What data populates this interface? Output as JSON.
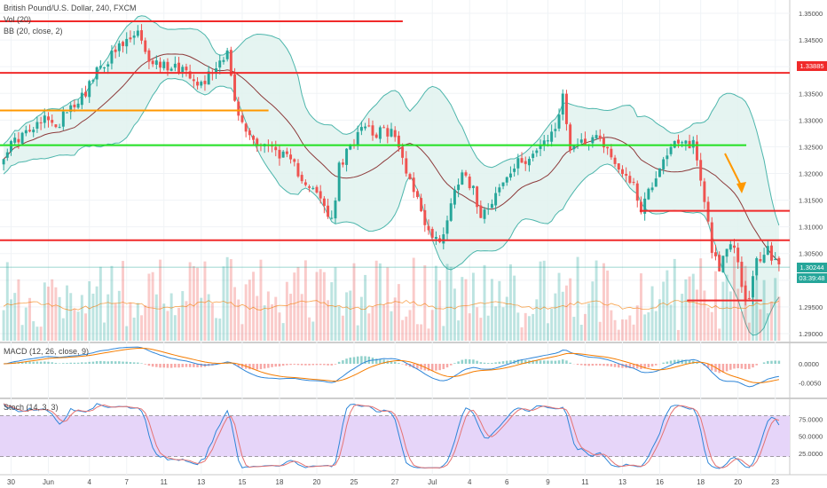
{
  "header": {
    "symbol_title": "British Pound/U.S. Dollar, 240, FXCM",
    "vol_label": "Vol (20)",
    "bb_label": "BB (20, close, 2)",
    "macd_label": "MACD (12, 26, close, 9)",
    "stoch_label": "Stoch (14, 3, 3)"
  },
  "price_tags": {
    "resistance": "1.33885",
    "last_price": "1.30244",
    "countdown": "03:39:48"
  },
  "colors": {
    "bull": "#26a69a",
    "bear": "#ef5350",
    "bb_fill": "#e0f2ef",
    "bb_band": "#4db6ac",
    "bb_basis": "#8d3b3b",
    "red_line": "#f02a2a",
    "orange_line": "#ff9800",
    "green_line": "#21e021",
    "macd_line": "#2f86d8",
    "signal_line": "#f57c00",
    "stoch_k": "#2f86d8",
    "stoch_d": "#e57373",
    "stoch_band": "#e6d5f9"
  },
  "chart_data": [
    {
      "type": "candlestick",
      "panel": "price",
      "y_axis_ticks": [
        "1.35000",
        "1.34500",
        "1.34000",
        "1.33500",
        "1.33000",
        "1.32500",
        "1.32000",
        "1.31500",
        "1.31000",
        "1.30500",
        "1.30000",
        "1.29500",
        "1.29000"
      ],
      "ylim": [
        1.2885,
        1.3515
      ],
      "x_ticks": [
        "30",
        "Jun",
        "4",
        "7",
        "11",
        "13",
        "15",
        "18",
        "20",
        "25",
        "27",
        "Jul",
        "4",
        "6",
        "9",
        "11",
        "13",
        "16",
        "18",
        "20",
        "23"
      ],
      "close_path": [
        [
          0,
          1.3238
        ],
        [
          4,
          1.3268
        ],
        [
          8,
          1.3281
        ],
        [
          12,
          1.3308
        ],
        [
          14,
          1.3278
        ],
        [
          16,
          1.3318
        ],
        [
          19,
          1.3332
        ],
        [
          22,
          1.3355
        ],
        [
          26,
          1.34
        ],
        [
          30,
          1.3428
        ],
        [
          34,
          1.3451
        ],
        [
          36,
          1.3462
        ],
        [
          38,
          1.342
        ],
        [
          42,
          1.3403
        ],
        [
          45,
          1.3402
        ],
        [
          49,
          1.3395
        ],
        [
          53,
          1.3368
        ],
        [
          56,
          1.3392
        ],
        [
          60,
          1.3433
        ],
        [
          62,
          1.333
        ],
        [
          64,
          1.329
        ],
        [
          67,
          1.3262
        ],
        [
          70,
          1.3255
        ],
        [
          74,
          1.3239
        ],
        [
          78,
          1.3212
        ],
        [
          82,
          1.3178
        ],
        [
          86,
          1.3139
        ],
        [
          88,
          1.3106
        ],
        [
          90,
          1.321
        ],
        [
          94,
          1.3262
        ],
        [
          96,
          1.3298
        ],
        [
          100,
          1.3275
        ],
        [
          104,
          1.3281
        ],
        [
          107,
          1.3228
        ],
        [
          110,
          1.3171
        ],
        [
          114,
          1.3091
        ],
        [
          117,
          1.3069
        ],
        [
          120,
          1.3143
        ],
        [
          123,
          1.3212
        ],
        [
          126,
          1.3167
        ],
        [
          128,
          1.3126
        ],
        [
          131,
          1.3152
        ],
        [
          134,
          1.3182
        ],
        [
          138,
          1.3218
        ],
        [
          142,
          1.3238
        ],
        [
          145,
          1.3252
        ],
        [
          148,
          1.3288
        ],
        [
          150,
          1.3341
        ],
        [
          152,
          1.3251
        ],
        [
          156,
          1.3262
        ],
        [
          160,
          1.3271
        ],
        [
          164,
          1.3218
        ],
        [
          168,
          1.3191
        ],
        [
          171,
          1.3137
        ],
        [
          174,
          1.318
        ],
        [
          177,
          1.3231
        ],
        [
          180,
          1.3251
        ],
        [
          183,
          1.3254
        ],
        [
          185,
          1.3259
        ],
        [
          188,
          1.3152
        ],
        [
          190,
          1.3062
        ],
        [
          192,
          1.3023
        ],
        [
          194,
          1.3051
        ],
        [
          196,
          1.3068
        ],
        [
          198,
          1.2988
        ],
        [
          200,
          1.2961
        ],
        [
          202,
          1.3035
        ],
        [
          205,
          1.3055
        ],
        [
          208,
          1.3024
        ]
      ],
      "n_bars": 209
    },
    {
      "type": "line",
      "panel": "price-overlay",
      "series": [
        {
          "name": "BB (20, close, 2)",
          "kind": "bands"
        }
      ]
    },
    {
      "type": "hline",
      "panel": "price",
      "levels": [
        {
          "price": 1.3485,
          "color": "red",
          "x_end": 0.51
        },
        {
          "price": 1.33885,
          "color": "red",
          "x_end": 1.0
        },
        {
          "price": 1.3318,
          "color": "orange",
          "x_end": 0.34
        },
        {
          "price": 1.3253,
          "color": "green",
          "x_end": 0.945
        },
        {
          "price": 1.313,
          "color": "red",
          "x_start": 0.81,
          "x_end": 1.0
        },
        {
          "price": 1.3075,
          "color": "red",
          "x_end": 1.0
        },
        {
          "price": 1.2962,
          "color": "red",
          "x_start": 0.87,
          "x_end": 0.965
        }
      ]
    },
    {
      "type": "bar",
      "panel": "volume",
      "series": [
        {
          "name": "Vol (20)"
        }
      ]
    },
    {
      "type": "line",
      "panel": "macd",
      "y_axis_ticks": [
        "0.0000",
        "-0.0050"
      ],
      "series": [
        {
          "name": "MACD"
        },
        {
          "name": "Signal"
        },
        {
          "name": "Histogram"
        }
      ]
    },
    {
      "type": "line",
      "panel": "stoch",
      "y_axis_ticks": [
        "75.0000",
        "50.0000",
        "25.0000"
      ],
      "bands": [
        20,
        80
      ],
      "series": [
        {
          "name": "%K"
        },
        {
          "name": "%D"
        }
      ]
    }
  ]
}
